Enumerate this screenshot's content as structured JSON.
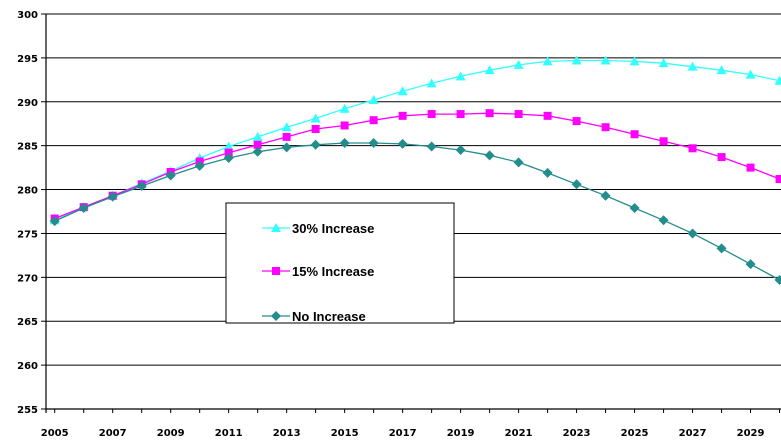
{
  "chart_data": {
    "type": "line",
    "x": [
      2005,
      2006,
      2007,
      2008,
      2009,
      2010,
      2011,
      2012,
      2013,
      2014,
      2015,
      2016,
      2017,
      2018,
      2019,
      2020,
      2021,
      2022,
      2023,
      2024,
      2025,
      2026,
      2027,
      2028,
      2029,
      2030
    ],
    "x_tick_labels": [
      "2005",
      "2007",
      "2009",
      "2011",
      "2013",
      "2015",
      "2017",
      "2019",
      "2021",
      "2023",
      "2025",
      "2027",
      "2029"
    ],
    "y_tick_labels": [
      "255",
      "260",
      "265",
      "270",
      "275",
      "280",
      "285",
      "290",
      "295",
      "300"
    ],
    "ylim": [
      255,
      300
    ],
    "grid": "horizontal",
    "legend_position": "center-left",
    "series": [
      {
        "name": "30% Increase",
        "color": "#33ffff",
        "marker": "triangle",
        "values": [
          276.5,
          278.0,
          279.3,
          280.7,
          282.1,
          283.6,
          284.9,
          286.0,
          287.1,
          288.1,
          289.2,
          290.2,
          291.2,
          292.1,
          292.9,
          293.6,
          294.2,
          294.6,
          294.7,
          294.7,
          294.6,
          294.4,
          294.0,
          293.6,
          293.1,
          292.4
        ]
      },
      {
        "name": "15% Increase",
        "color": "#ff00ff",
        "marker": "square",
        "values": [
          276.7,
          278.0,
          279.3,
          280.6,
          282.0,
          283.2,
          284.2,
          285.1,
          286.0,
          286.9,
          287.3,
          287.9,
          288.4,
          288.6,
          288.6,
          288.7,
          288.6,
          288.4,
          287.8,
          287.1,
          286.3,
          285.5,
          284.7,
          283.7,
          282.5,
          281.2
        ]
      },
      {
        "name": "No Increase",
        "color": "#238c8c",
        "marker": "diamond",
        "values": [
          276.4,
          277.9,
          279.2,
          280.4,
          281.6,
          282.7,
          283.6,
          284.3,
          284.8,
          285.1,
          285.3,
          285.3,
          285.2,
          284.9,
          284.5,
          283.9,
          283.1,
          281.9,
          280.6,
          279.3,
          277.9,
          276.5,
          275.0,
          273.3,
          271.5,
          269.7
        ]
      }
    ]
  }
}
